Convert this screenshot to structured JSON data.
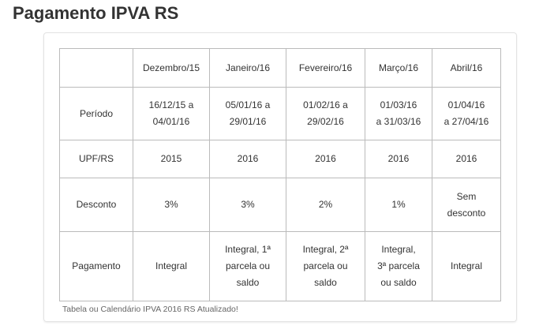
{
  "title": "Pagamento IPVA RS",
  "table": {
    "headers": [
      "",
      "Dezembro/15",
      "Janeiro/16",
      "Fevereiro/16",
      "Março/16",
      "Abril/16"
    ],
    "rows": [
      [
        "Período",
        "16/12/15  a\n04/01/16",
        "05/01/16  a\n29/01/16",
        "01/02/16  a\n29/02/16",
        "01/03/16\na 31/03/16",
        "01/04/16\na 27/04/16"
      ],
      [
        "UPF/RS",
        "2015",
        "2016",
        "2016",
        "2016",
        "2016"
      ],
      [
        "Desconto",
        "3%",
        "3%",
        "2%",
        "1%",
        "Sem\ndesconto"
      ],
      [
        "Pagamento",
        "Integral",
        "Integral,  1ª\nparcela ou\nsaldo",
        "Integral,  2ª\nparcela ou\nsaldo",
        "Integral,\n3ª parcela\nou saldo",
        "Integral"
      ]
    ]
  },
  "caption": "Tabela ou Calendário IPVA 2016 RS Atualizado!"
}
